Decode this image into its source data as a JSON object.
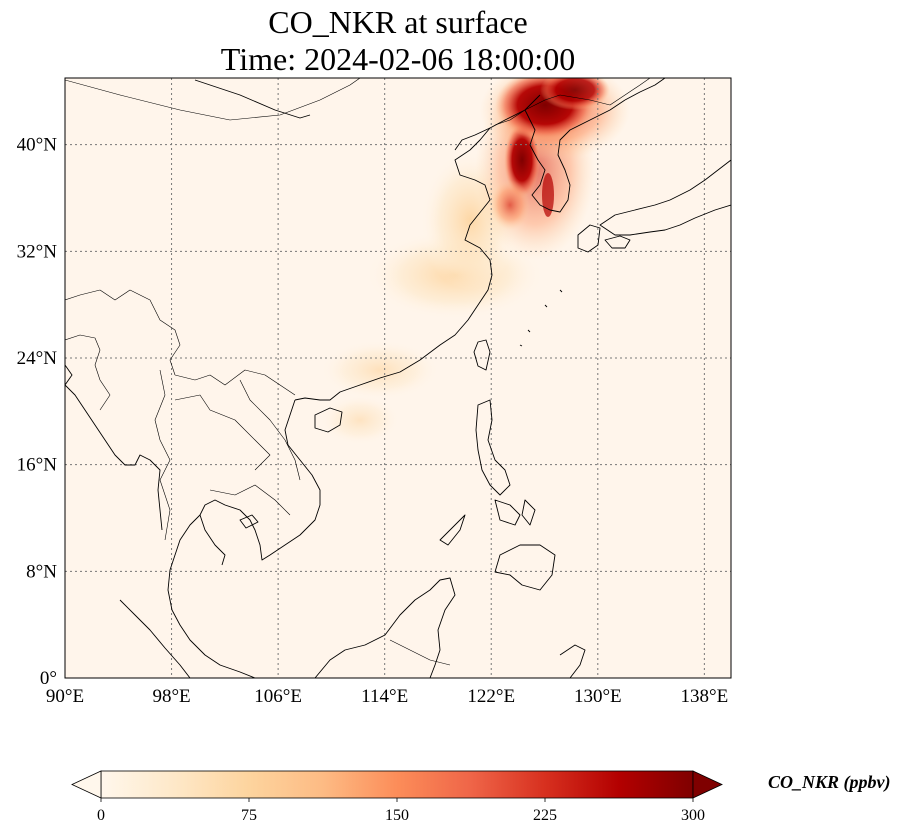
{
  "title": {
    "line1": "CO_NKR at surface",
    "line2": "Time: 2024-02-06 18:00:00"
  },
  "map": {
    "lon_range": [
      90,
      140
    ],
    "lat_range": [
      0,
      45
    ],
    "lon_ticks": [
      {
        "value": 90,
        "label": "90°E"
      },
      {
        "value": 98,
        "label": "98°E"
      },
      {
        "value": 106,
        "label": "106°E"
      },
      {
        "value": 114,
        "label": "114°E"
      },
      {
        "value": 122,
        "label": "122°E"
      },
      {
        "value": 130,
        "label": "130°E"
      },
      {
        "value": 138,
        "label": "138°E"
      }
    ],
    "lat_ticks": [
      {
        "value": 0,
        "label": "0°"
      },
      {
        "value": 8,
        "label": "8°N"
      },
      {
        "value": 16,
        "label": "16°N"
      },
      {
        "value": 24,
        "label": "24°N"
      },
      {
        "value": 32,
        "label": "32°N"
      },
      {
        "value": 40,
        "label": "40°N"
      }
    ],
    "gridlines": true,
    "background_color": "#fff5eb",
    "plume_colors": [
      "#fdd5ab",
      "#fdae6b",
      "#f16913",
      "#d94801",
      "#a63603",
      "#7f2704"
    ]
  },
  "colorbar": {
    "label": "CO_NKR (ppbv)",
    "min": 0,
    "max": 300,
    "extend": "both",
    "ticks": [
      {
        "value": 0,
        "label": "0"
      },
      {
        "value": 75,
        "label": "75"
      },
      {
        "value": 150,
        "label": "150"
      },
      {
        "value": 225,
        "label": "225"
      },
      {
        "value": 300,
        "label": "300"
      }
    ],
    "colormap": "OrRd",
    "colors": [
      "#fff7ec",
      "#fee8c8",
      "#fdd49e",
      "#fdbb84",
      "#fc8d59",
      "#ef6548",
      "#d7301f",
      "#b30000",
      "#7f0000"
    ]
  }
}
